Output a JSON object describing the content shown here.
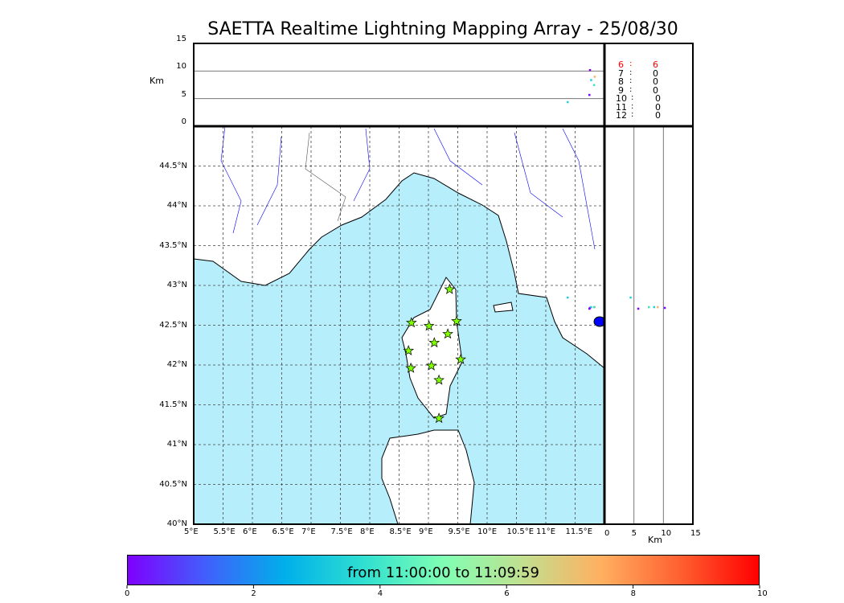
{
  "title": "SAETTA Realtime Lightning Mapping Array - 25/08/30",
  "altitude_label": "Km",
  "altitude_ticks": [
    "0",
    "5",
    "10",
    "15"
  ],
  "lon_ticks": [
    "5°E",
    "5.5°E",
    "6°E",
    "6.5°E",
    "7°E",
    "7.5°E",
    "8°E",
    "8.5°E",
    "9°E",
    "9.5°E",
    "10°E",
    "10.5°E",
    "11°E",
    "11.5°E"
  ],
  "lat_ticks": [
    "40°N",
    "40.5°N",
    "41°N",
    "41.5°N",
    "42°N",
    "42.5°N",
    "43°N",
    "43.5°N",
    "44°N",
    "44.5°N"
  ],
  "map_extent": {
    "lon": [
      5,
      12
    ],
    "lat": [
      40,
      45
    ],
    "alt_km": [
      0,
      15
    ]
  },
  "colors": {
    "sea": "#b6eefc",
    "land": "#ffffff",
    "rivers": "#0000ff",
    "station": "#7fff00",
    "highlight": "#ff0000"
  },
  "station_counts": [
    {
      "n": "6",
      "sep": ":",
      "count": "6",
      "highlight": true
    },
    {
      "n": "7",
      "sep": ":",
      "count": "0"
    },
    {
      "n": "8",
      "sep": ":",
      "count": "0"
    },
    {
      "n": "9",
      "sep": ":",
      "count": "0"
    },
    {
      "n": "10",
      "sep": ":",
      "count": "0"
    },
    {
      "n": "11",
      "sep": ":",
      "count": "0"
    },
    {
      "n": "12",
      "sep": ":",
      "count": "0"
    }
  ],
  "stations": [
    [
      9.36,
      42.95
    ],
    [
      8.71,
      42.53
    ],
    [
      9.01,
      42.49
    ],
    [
      9.48,
      42.55
    ],
    [
      9.33,
      42.39
    ],
    [
      9.1,
      42.28
    ],
    [
      8.66,
      42.18
    ],
    [
      9.55,
      42.07
    ],
    [
      9.05,
      41.99
    ],
    [
      8.7,
      41.96
    ],
    [
      9.18,
      41.81
    ],
    [
      9.18,
      41.33
    ]
  ],
  "events": [
    {
      "lon": 11.37,
      "lat": 42.85,
      "alt_km": 4.4,
      "color": "#20d0e0"
    },
    {
      "lon": 11.75,
      "lat": 42.72,
      "alt_km": 10.2,
      "color": "#7f00ff"
    },
    {
      "lon": 11.83,
      "lat": 42.73,
      "alt_km": 9.0,
      "color": "#ffb060"
    },
    {
      "lon": 11.77,
      "lat": 42.73,
      "alt_km": 8.4,
      "color": "#20d0e0"
    },
    {
      "lon": 11.82,
      "lat": 42.73,
      "alt_km": 7.5,
      "color": "#40e0c0"
    },
    {
      "lon": 11.74,
      "lat": 42.71,
      "alt_km": 5.7,
      "color": "#7f00ff"
    }
  ],
  "colorbar": {
    "label": "from 11:00:00 to 11:09:59",
    "ticks": [
      "0",
      "2",
      "4",
      "6",
      "8",
      "10"
    ],
    "range": [
      0,
      10
    ]
  }
}
